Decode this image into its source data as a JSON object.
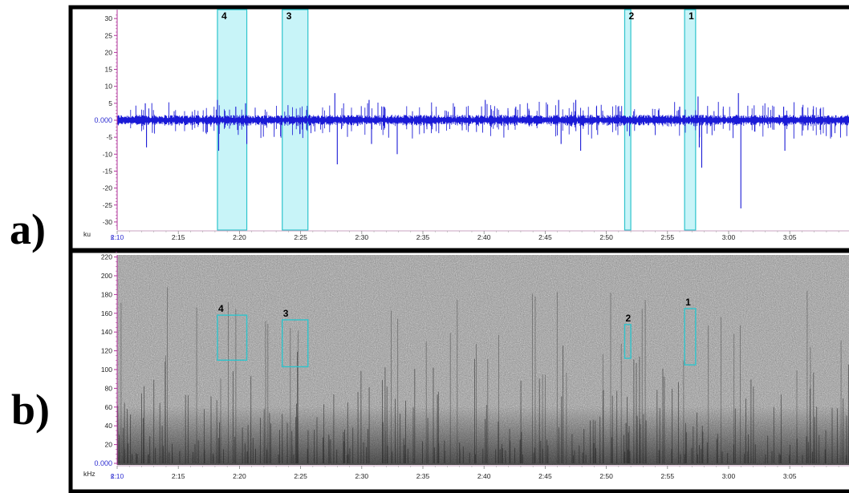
{
  "panel_labels": [
    "a)",
    "b)"
  ],
  "colors": {
    "waveform": "#1a1ad6",
    "highlight_fill": "#c8f4f8",
    "highlight_edge": "#2ec4cc",
    "axis_magenta": "#b0339a",
    "zero_label": "#2b2bd0",
    "spectrogram_bg": "#9a9a9a"
  },
  "chart_data": [
    {
      "type": "line",
      "panel": "a)",
      "ylabel": "ku",
      "x_unit": "s",
      "xlim": [
        "2:10",
        "3:10"
      ],
      "ylim": [
        -32,
        32
      ],
      "x_tick_labels": [
        "2:10",
        "2:15",
        "2:20",
        "2:25",
        "2:30",
        "2:35",
        "2:40",
        "2:45",
        "2:50",
        "2:55",
        "3:00",
        "3:05"
      ],
      "y_tick_labels": [
        "30",
        "25",
        "20",
        "15",
        "10",
        "5",
        "0.000",
        "-5",
        "-10",
        "-15",
        "-20",
        "-25",
        "-30"
      ],
      "annotations": [
        {
          "label": "4",
          "start": "2:18.2",
          "end": "2:20.6"
        },
        {
          "label": "3",
          "start": "2:23.5",
          "end": "2:25.6"
        },
        {
          "label": "2",
          "start": "2:51.5",
          "end": "2:52.0"
        },
        {
          "label": "1",
          "start": "2:56.4",
          "end": "2:57.3"
        }
      ],
      "spikes": [
        {
          "t": 132.3,
          "v": 5
        },
        {
          "t": 132.4,
          "v": -8
        },
        {
          "t": 138.2,
          "v": 6
        },
        {
          "t": 138.3,
          "v": -9
        },
        {
          "t": 139.7,
          "v": 4
        },
        {
          "t": 140.5,
          "v": 5
        },
        {
          "t": 140.6,
          "v": -7
        },
        {
          "t": 147.8,
          "v": 8
        },
        {
          "t": 148.0,
          "v": -13
        },
        {
          "t": 150.6,
          "v": 6
        },
        {
          "t": 150.8,
          "v": -7
        },
        {
          "t": 152.9,
          "v": -10
        },
        {
          "t": 157.6,
          "v": 4
        },
        {
          "t": 160.1,
          "v": 6
        },
        {
          "t": 162.6,
          "v": 4
        },
        {
          "t": 166.1,
          "v": 6
        },
        {
          "t": 166.3,
          "v": -7
        },
        {
          "t": 167.5,
          "v": 6
        },
        {
          "t": 167.9,
          "v": -9
        },
        {
          "t": 169.2,
          "v": 4
        },
        {
          "t": 176.0,
          "v": 4
        },
        {
          "t": 177.5,
          "v": 7
        },
        {
          "t": 177.6,
          "v": -8
        },
        {
          "t": 177.8,
          "v": -14
        },
        {
          "t": 180.8,
          "v": 8
        },
        {
          "t": 181.0,
          "v": -26
        },
        {
          "t": 184.5,
          "v": 4
        },
        {
          "t": 184.6,
          "v": -9
        }
      ]
    },
    {
      "type": "heatmap",
      "panel": "b)",
      "ylabel": "kHz",
      "x_unit": "s",
      "xlim": [
        "2:10",
        "3:10"
      ],
      "ylim": [
        0,
        230
      ],
      "x_tick_labels": [
        "2:10",
        "2:15",
        "2:20",
        "2:25",
        "2:30",
        "2:35",
        "2:40",
        "2:45",
        "2:50",
        "2:55",
        "3:00",
        "3:05"
      ],
      "y_tick_labels": [
        "220",
        "200",
        "180",
        "160",
        "140",
        "120",
        "100",
        "80",
        "60",
        "40",
        "20",
        "0.000"
      ],
      "annotations": [
        {
          "label": "4",
          "start": "2:18.2",
          "end": "2:20.6",
          "f_low": 110,
          "f_high": 158
        },
        {
          "label": "3",
          "start": "2:23.5",
          "end": "2:25.6",
          "f_low": 103,
          "f_high": 153
        },
        {
          "label": "2",
          "start": "2:51.5",
          "end": "2:52.0",
          "f_low": 112,
          "f_high": 148
        },
        {
          "label": "1",
          "start": "2:56.4",
          "end": "2:57.3",
          "f_low": 105,
          "f_high": 165
        }
      ]
    }
  ]
}
